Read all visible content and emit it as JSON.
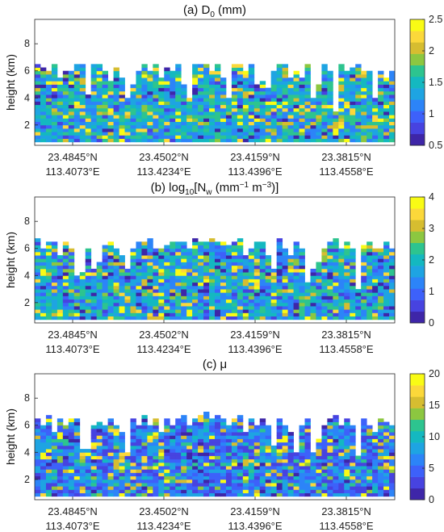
{
  "colormap": [
    "#3e26a8",
    "#4743e0",
    "#3d61fa",
    "#2c84f8",
    "#1ea4e2",
    "#14b8c0",
    "#2dc48f",
    "#8cc740",
    "#d6bd30",
    "#fbd83a",
    "#f9fb15"
  ],
  "chart_data": [
    {
      "type": "heatmap",
      "title_prefix": "(a) D",
      "title_sub": "0",
      "title_suffix": " (mm)",
      "ylabel": "height (km)",
      "yticks": [
        "2",
        "4",
        "6",
        "8"
      ],
      "ylim": [
        0.5,
        9.8
      ],
      "x_tick_labels": [
        {
          "lat": "23.4845°N",
          "lon": "113.4073°E"
        },
        {
          "lat": "23.4502°N",
          "lon": "113.4234°E"
        },
        {
          "lat": "23.4159°N",
          "lon": "113.4396°E"
        },
        {
          "lat": "23.3815°N",
          "lon": "113.4558°E"
        }
      ],
      "colorbar": {
        "min": 0.5,
        "max": 2.5,
        "ticks": [
          "0.5",
          "1",
          "1.5",
          "2",
          "2.5"
        ]
      },
      "columns": 64,
      "column_tops_km": [
        6.5,
        6.2,
        6.0,
        6.5,
        5.5,
        6.0,
        5.8,
        6.3,
        6.4,
        4.2,
        6.3,
        6.5,
        6.0,
        5.2,
        6.2,
        5.5,
        4.0,
        4.8,
        6.0,
        6.5,
        6.0,
        6.4,
        5.5,
        6.2,
        6.0,
        6.5,
        5.0,
        4.0,
        6.5,
        6.4,
        6.3,
        6.0,
        6.5,
        5.5,
        6.6,
        6.5,
        6.3,
        5.8,
        6.4,
        6.5,
        5.2,
        4.6,
        6.0,
        6.5,
        6.5,
        5.5,
        6.0,
        5.5,
        6.3,
        4.0,
        5.0,
        6.5,
        6.0,
        5.5,
        6.5,
        6.0,
        6.2,
        6.5,
        5.8,
        6.0,
        6.3,
        6.0,
        5.5,
        5.8
      ],
      "gaps_km": [
        [
          34,
          3.8,
          6.6
        ],
        [
          39,
          4.8,
          6.6
        ],
        [
          53,
          2.8,
          6.6
        ],
        [
          60,
          4.0,
          6.3
        ]
      ],
      "seed": 11,
      "value_range": [
        0.5,
        2.5
      ],
      "dominant_value": 1.4
    },
    {
      "type": "heatmap",
      "title_prefix": "(b) log",
      "title_sub": "10",
      "title_suffix": "[N",
      "title_sub2": "w",
      "title_suffix2": " (mm",
      "title_sup": "−1",
      "title_suffix3": " m",
      "title_sup2": "−3",
      "title_suffix4": ")]",
      "ylabel": "height (km)",
      "yticks": [
        "2",
        "4",
        "6",
        "8"
      ],
      "ylim": [
        0.5,
        9.8
      ],
      "x_tick_labels": [
        {
          "lat": "23.4845°N",
          "lon": "113.4073°E"
        },
        {
          "lat": "23.4502°N",
          "lon": "113.4234°E"
        },
        {
          "lat": "23.4159°N",
          "lon": "113.4396°E"
        },
        {
          "lat": "23.3815°N",
          "lon": "113.4558°E"
        }
      ],
      "colorbar": {
        "min": 0,
        "max": 4,
        "ticks": [
          "0",
          "1",
          "2",
          "3",
          "4"
        ]
      },
      "columns": 64,
      "column_tops_km": [
        6.6,
        6.0,
        6.5,
        6.3,
        5.5,
        6.5,
        6.0,
        4.0,
        6.2,
        5.8,
        4.5,
        5.0,
        6.2,
        6.5,
        6.0,
        5.5,
        4.5,
        6.0,
        6.5,
        6.3,
        6.6,
        6.0,
        5.8,
        6.2,
        6.5,
        6.5,
        6.3,
        6.0,
        6.6,
        6.5,
        6.4,
        6.6,
        6.3,
        6.5,
        6.2,
        6.5,
        6.6,
        5.5,
        6.0,
        6.5,
        6.3,
        5.5,
        4.5,
        6.6,
        6.0,
        5.5,
        6.5,
        5.8,
        6.3,
        4.5,
        5.0,
        6.0,
        6.5,
        6.6,
        6.0,
        6.3,
        6.0,
        5.5,
        6.2,
        6.5,
        5.8,
        6.0,
        6.3,
        6.0
      ],
      "gaps_km": [
        [
          8,
          4.2,
          6.6
        ],
        [
          48,
          3.5,
          6.6
        ],
        [
          57,
          3.0,
          6.3
        ]
      ],
      "seed": 23,
      "value_range": [
        0,
        4
      ],
      "dominant_value": 1.7
    },
    {
      "type": "heatmap",
      "title": "(c) μ",
      "ylabel": "height (km)",
      "yticks": [
        "2",
        "4",
        "6",
        "8"
      ],
      "ylim": [
        0.5,
        9.8
      ],
      "x_tick_labels": [
        {
          "lat": "23.4845°N",
          "lon": "113.4073°E"
        },
        {
          "lat": "23.4502°N",
          "lon": "113.4234°E"
        },
        {
          "lat": "23.4159°N",
          "lon": "113.4396°E"
        },
        {
          "lat": "23.3815°N",
          "lon": "113.4558°E"
        }
      ],
      "colorbar": {
        "min": 0,
        "max": 20,
        "ticks": [
          "0",
          "5",
          "10",
          "15",
          "20"
        ]
      },
      "columns": 64,
      "column_tops_km": [
        6.5,
        6.0,
        6.6,
        5.5,
        6.3,
        6.0,
        6.5,
        6.3,
        4.2,
        5.0,
        6.0,
        6.2,
        5.8,
        6.5,
        6.0,
        5.5,
        4.0,
        6.5,
        6.0,
        6.6,
        6.0,
        6.5,
        5.5,
        6.3,
        6.0,
        6.5,
        6.6,
        6.0,
        6.5,
        6.6,
        6.8,
        6.5,
        6.6,
        6.5,
        6.0,
        6.5,
        6.6,
        5.5,
        6.5,
        6.0,
        6.3,
        5.8,
        4.5,
        6.5,
        6.0,
        5.5,
        6.4,
        6.0,
        6.3,
        4.0,
        5.0,
        6.0,
        6.4,
        6.6,
        6.0,
        6.5,
        5.8,
        6.3,
        6.5,
        6.0,
        5.5,
        6.4,
        6.2,
        6.0
      ],
      "gaps_km": [
        [
          9,
          4.2,
          6.6
        ],
        [
          46,
          3.8,
          6.6
        ],
        [
          57,
          3.6,
          6.3
        ]
      ],
      "seed": 37,
      "value_range": [
        0,
        20
      ],
      "dominant_value": 5.5
    }
  ]
}
